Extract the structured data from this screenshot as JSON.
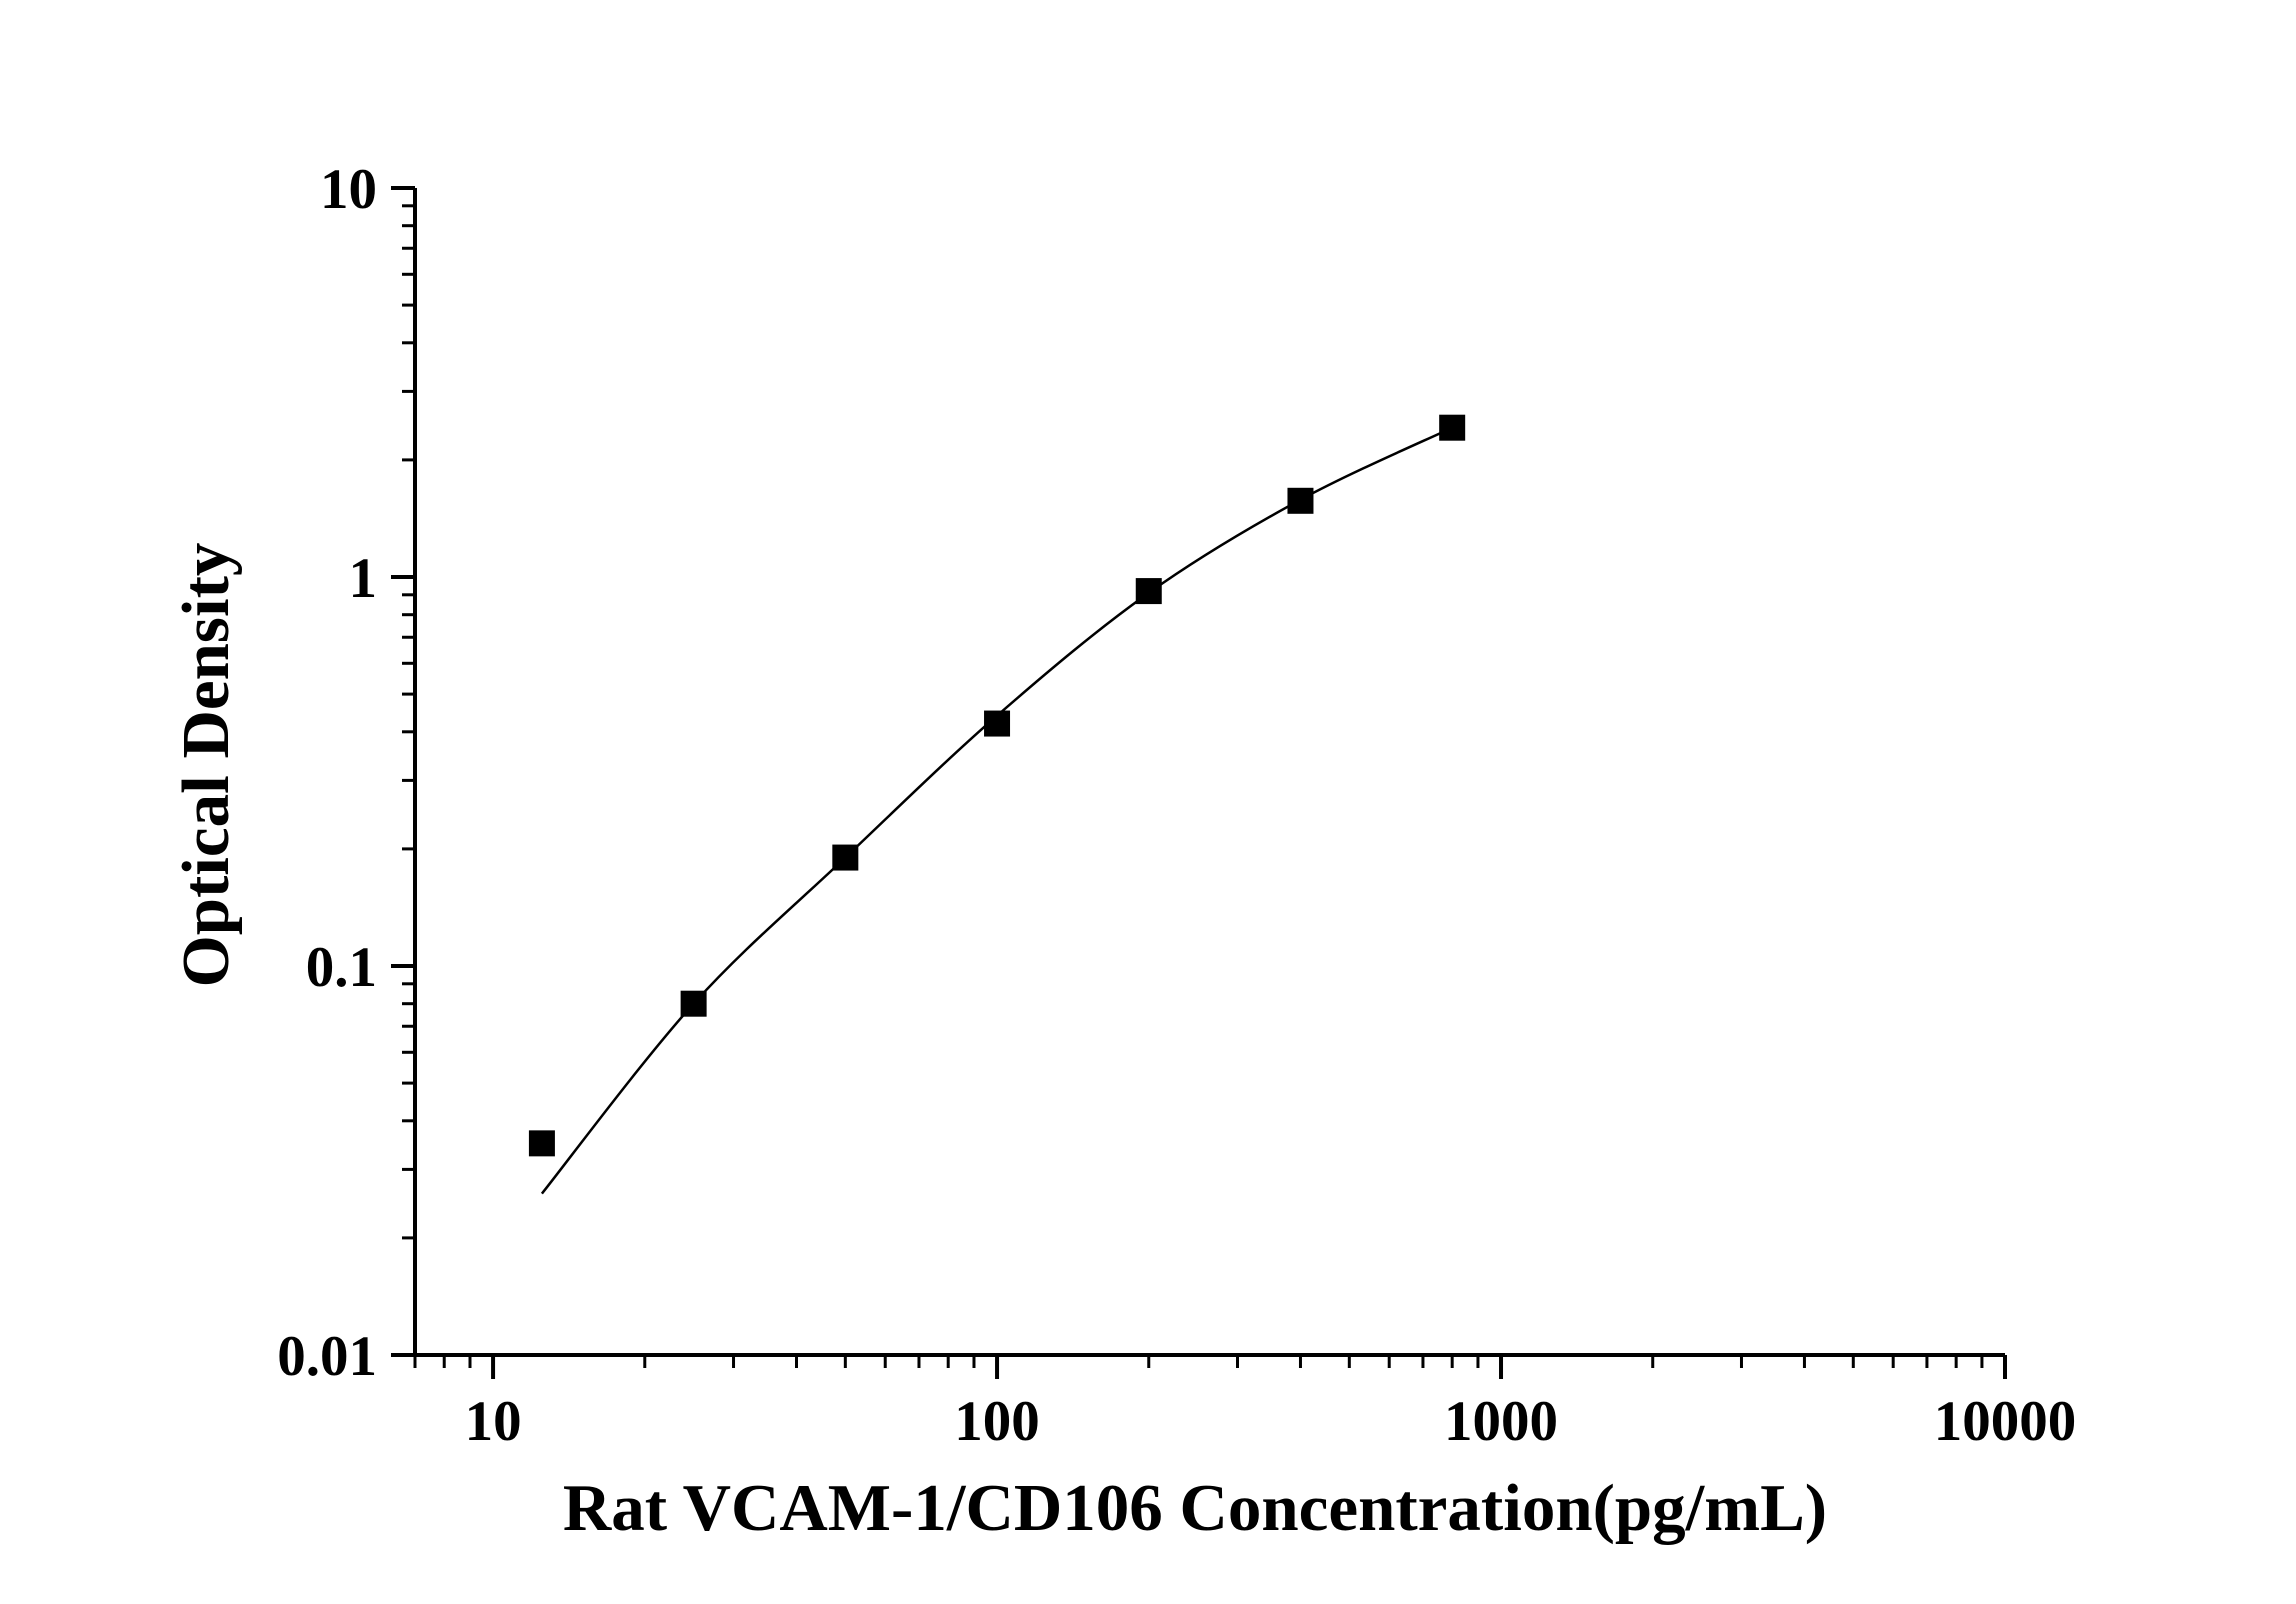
{
  "chart_data": {
    "type": "scatter",
    "title": "",
    "xlabel": "Rat VCAM-1/CD106 Concentration(pg/mL)",
    "ylabel": "Optical Density",
    "x_scale": "log",
    "y_scale": "log",
    "xlim": [
      7,
      10000
    ],
    "ylim": [
      0.01,
      10
    ],
    "x_ticks": [
      {
        "value": 10,
        "label": "10"
      },
      {
        "value": 100,
        "label": "100"
      },
      {
        "value": 1000,
        "label": "1000"
      },
      {
        "value": 10000,
        "label": "10000"
      }
    ],
    "y_ticks": [
      {
        "value": 0.01,
        "label": "0.01"
      },
      {
        "value": 0.1,
        "label": "0.1"
      },
      {
        "value": 1,
        "label": "1"
      },
      {
        "value": 10,
        "label": "10"
      }
    ],
    "grid": false,
    "legend": "none",
    "series": [
      {
        "marker": "square",
        "color": "#000000",
        "x": [
          12.5,
          25,
          50,
          100,
          200,
          400,
          800
        ],
        "y": [
          0.035,
          0.08,
          0.19,
          0.42,
          0.92,
          1.57,
          2.42
        ]
      }
    ],
    "fit_curve": {
      "color": "#000000",
      "x": [
        12.5,
        25,
        50,
        100,
        200,
        400,
        800
      ],
      "y": [
        0.026,
        0.08,
        0.19,
        0.44,
        0.91,
        1.58,
        2.42
      ]
    }
  }
}
